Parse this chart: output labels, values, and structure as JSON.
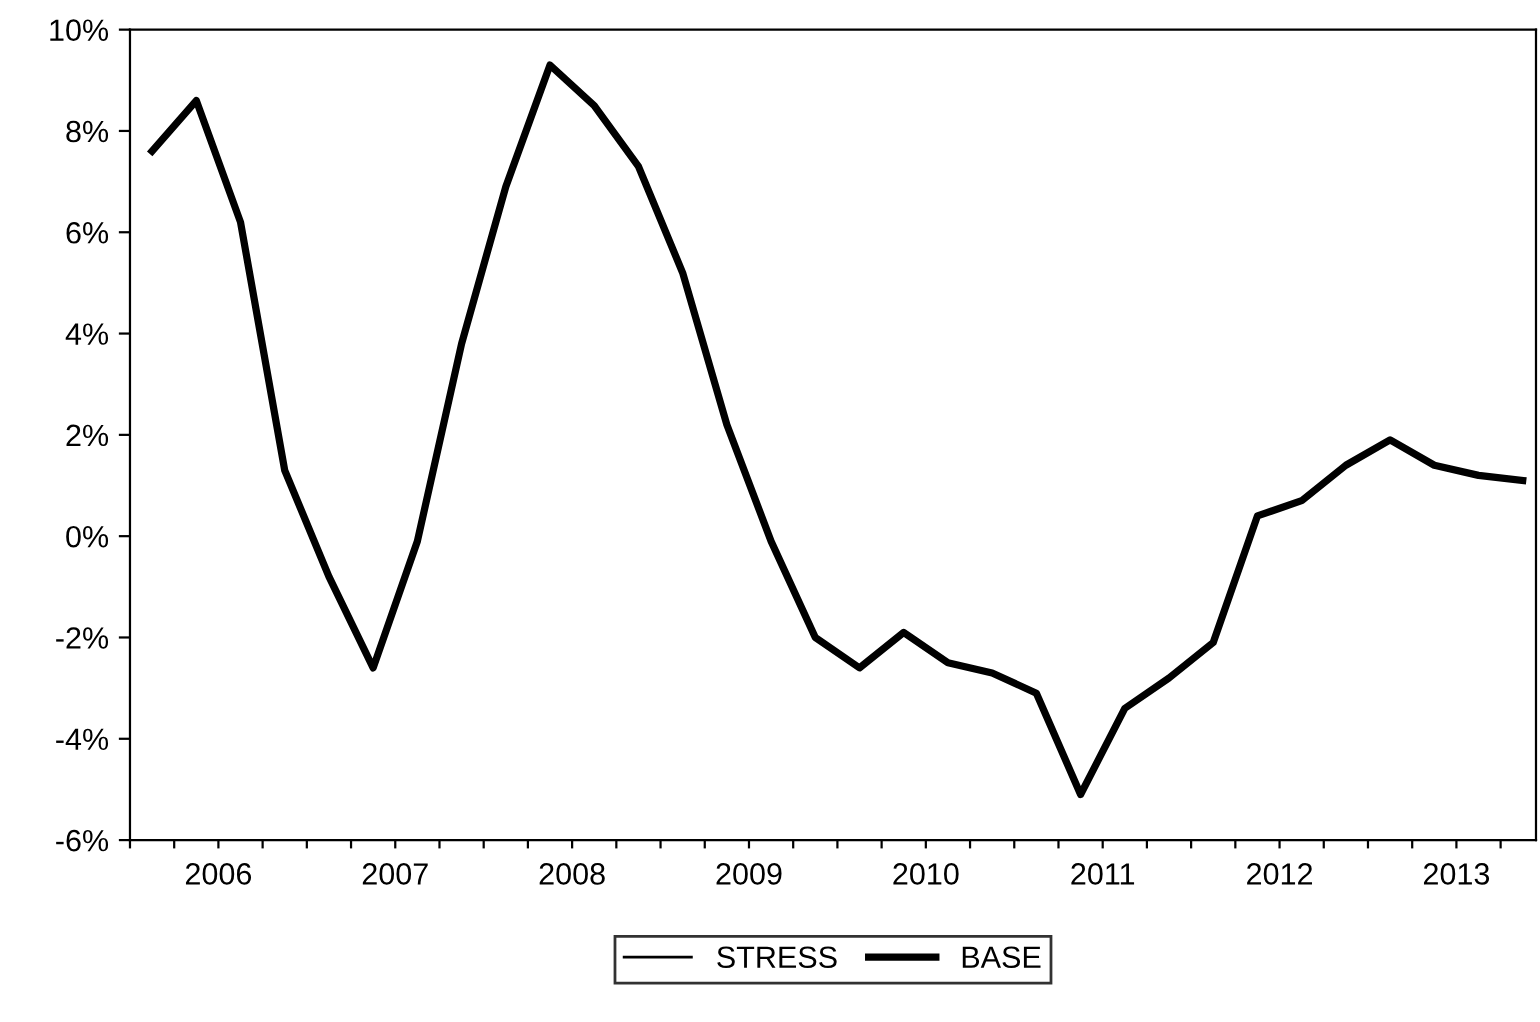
{
  "chart_data": {
    "type": "line",
    "x": [
      2006.125,
      2006.375,
      2006.625,
      2006.875,
      2007.125,
      2007.375,
      2007.625,
      2007.875,
      2008.125,
      2008.375,
      2008.625,
      2008.875,
      2009.125,
      2009.375,
      2009.625,
      2009.875,
      2010.125,
      2010.375,
      2010.625,
      2010.875,
      2011.125,
      2011.375,
      2011.625,
      2011.875,
      2012.125,
      2012.375,
      2012.625,
      2012.875,
      2013.125,
      2013.375,
      2013.625,
      2013.875
    ],
    "series": [
      {
        "name": "STRESS",
        "color": "#000000",
        "values": [
          null,
          null,
          null,
          null,
          null,
          null,
          null,
          null,
          null,
          null,
          null,
          null,
          null,
          null,
          null,
          null,
          null,
          null,
          null,
          null,
          null,
          null,
          null,
          null,
          null,
          null,
          null,
          null,
          null,
          null,
          null,
          null
        ]
      },
      {
        "name": "BASE",
        "color": "#000000",
        "values": [
          7.6,
          8.6,
          6.2,
          1.3,
          -0.8,
          -2.6,
          -0.1,
          3.8,
          6.9,
          9.3,
          8.5,
          7.3,
          5.2,
          2.2,
          -0.1,
          -2.0,
          -2.6,
          -1.9,
          -2.5,
          -2.7,
          -3.1,
          -5.1,
          -3.4,
          -2.8,
          -2.1,
          0.4,
          0.7,
          1.4,
          1.9,
          1.4,
          1.2,
          1.1
        ]
      }
    ],
    "xlim": [
      2006.0,
      2013.95
    ],
    "xticks": [
      {
        "value": 2006.0,
        "label": null
      },
      {
        "value": 2006.25,
        "label": null
      },
      {
        "value": 2006.5,
        "label": "2006"
      },
      {
        "value": 2006.75,
        "label": null
      },
      {
        "value": 2007.0,
        "label": null
      },
      {
        "value": 2007.25,
        "label": null
      },
      {
        "value": 2007.5,
        "label": "2007"
      },
      {
        "value": 2007.75,
        "label": null
      },
      {
        "value": 2008.0,
        "label": null
      },
      {
        "value": 2008.25,
        "label": null
      },
      {
        "value": 2008.5,
        "label": "2008"
      },
      {
        "value": 2008.75,
        "label": null
      },
      {
        "value": 2009.0,
        "label": null
      },
      {
        "value": 2009.25,
        "label": null
      },
      {
        "value": 2009.5,
        "label": "2009"
      },
      {
        "value": 2009.75,
        "label": null
      },
      {
        "value": 2010.0,
        "label": null
      },
      {
        "value": 2010.25,
        "label": null
      },
      {
        "value": 2010.5,
        "label": "2010"
      },
      {
        "value": 2010.75,
        "label": null
      },
      {
        "value": 2011.0,
        "label": null
      },
      {
        "value": 2011.25,
        "label": null
      },
      {
        "value": 2011.5,
        "label": "2011"
      },
      {
        "value": 2011.75,
        "label": null
      },
      {
        "value": 2012.0,
        "label": null
      },
      {
        "value": 2012.25,
        "label": null
      },
      {
        "value": 2012.5,
        "label": "2012"
      },
      {
        "value": 2012.75,
        "label": null
      },
      {
        "value": 2013.0,
        "label": null
      },
      {
        "value": 2013.25,
        "label": null
      },
      {
        "value": 2013.5,
        "label": "2013"
      },
      {
        "value": 2013.75,
        "label": null
      }
    ],
    "ylim": [
      -6,
      10
    ],
    "yticks": [
      {
        "value": -6,
        "label": "-6%"
      },
      {
        "value": -4,
        "label": "-4%"
      },
      {
        "value": -2,
        "label": "-2%"
      },
      {
        "value": 0,
        "label": "0%"
      },
      {
        "value": 2,
        "label": "2%"
      },
      {
        "value": 4,
        "label": "4%"
      },
      {
        "value": 6,
        "label": "6%"
      },
      {
        "value": 8,
        "label": "8%"
      },
      {
        "value": 10,
        "label": "10%"
      }
    ],
    "grid": false,
    "legend": "bottom",
    "marker": "none",
    "line_style": "solid"
  }
}
